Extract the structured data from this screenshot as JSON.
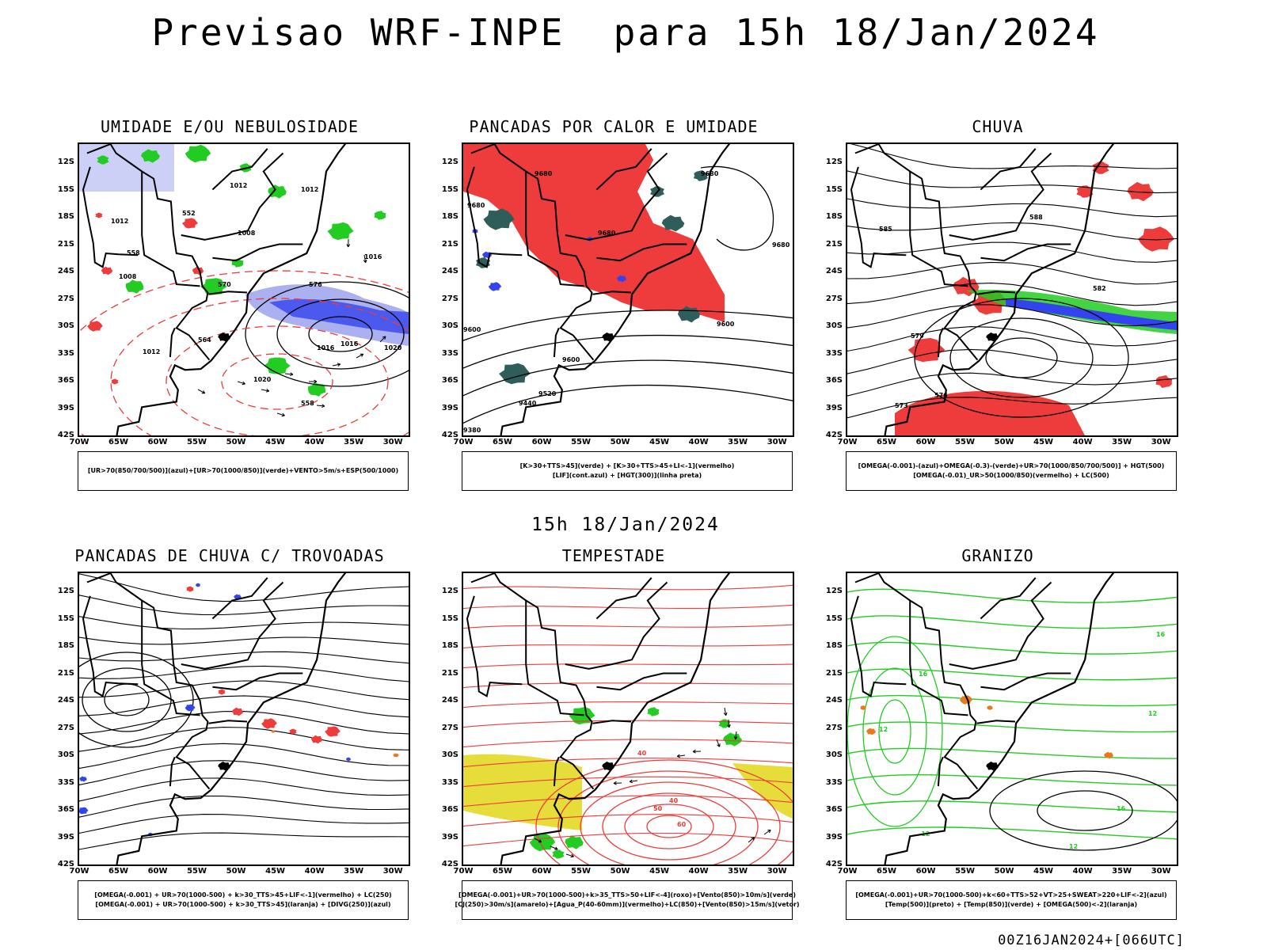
{
  "header": {
    "title": "Previsao WRF-INPE  para 15h 18/Jan/2024",
    "subtitle": "15h 18/Jan/2024",
    "footer": "00Z16JAN2024+[066UTC]"
  },
  "axes": {
    "lat_labels": [
      "12S",
      "15S",
      "18S",
      "21S",
      "24S",
      "27S",
      "30S",
      "33S",
      "36S",
      "39S",
      "42S"
    ],
    "lon_labels": [
      "70W",
      "65W",
      "60W",
      "55W",
      "50W",
      "45W",
      "40W",
      "35W",
      "30W"
    ]
  },
  "colors": {
    "green": "#22cc22",
    "blue": "#3344ee",
    "lightblue": "#aab0f0",
    "red": "#ee3b3b",
    "darkteal": "#2f5d5a",
    "yellow": "#e6dd3a",
    "orange": "#e87a1e",
    "black": "#000000"
  },
  "panels": [
    {
      "id": "umidade",
      "title": "UMIDADE E/OU NEBULOSIDADE",
      "legend": [
        "[UR>70(850/700/500)](azul)+[UR>70(1000/850)](verde)+VENTO>5m/s+ESP(500/1000)"
      ],
      "contour_labels": [
        "1012",
        "1012",
        "1012",
        "1008",
        "1008",
        "1016",
        "1012",
        "1016",
        "1020",
        "1020",
        "1016",
        "552",
        "558",
        "564",
        "570",
        "576",
        "558"
      ]
    },
    {
      "id": "pancadas-calor",
      "title": "PANCADAS POR CALOR E UMIDADE",
      "legend": [
        "[K>30+TTS>45](verde) + [K>30+TTS>45+LI<-1](vermelho)",
        "[LIF](cont.azul) + [HGT(300)](linha preta)"
      ],
      "contour_labels": [
        "9680",
        "9680",
        "9680",
        "9680",
        "9680",
        "9600",
        "9600",
        "9600",
        "9520",
        "9440",
        "9380"
      ]
    },
    {
      "id": "chuva",
      "title": "CHUVA",
      "legend": [
        "[OMEGA(-0.001)-(azul)+OMEGA(-0.3)-(verde)+UR>70(1000/850/700/500)] + HGT(500)",
        "[OMEGA(-0.01)_UR>50(1000/850)(vermelho) + LC(500)"
      ],
      "contour_labels": [
        "588",
        "585",
        "582",
        "579",
        "576",
        "573"
      ]
    },
    {
      "id": "pancadas-trovoadas",
      "title": "PANCADAS DE CHUVA C/ TROVOADAS",
      "legend": [
        "[OMEGA(-0.001) + UR>70(1000-500) + k>30_TTS>45+LIF<-1](vermelho) + LC(250)",
        "[OMEGA(-0.001) + UR>70(1000-500) + k>30_TTS>45](laranja) + [DIVG(250)](azul)"
      ],
      "contour_labels": []
    },
    {
      "id": "tempestade",
      "title": "TEMPESTADE",
      "legend": [
        "[OMEGA(-0.001)+UR>70(1000-500)+k>35_TTS>50+LIF<-4](roxo)+[Vento(850)>10m/s](verde)",
        "[CJ(250)>30m/s](amarelo)+[Agua_P(40-60mm)](vermelho)+LC(850)+[Vento(850)>15m/s](vetor)"
      ],
      "contour_labels": [
        "40",
        "40",
        "50",
        "60"
      ]
    },
    {
      "id": "granizo",
      "title": "GRANIZO",
      "legend": [
        "[OMEGA(-0.001)+UR>70(1000-500)+k<60+TTS>52+VT>25+SWEAT>220+LIF<-2](azul)",
        "[Temp(500)](preto) + [Temp(850)](verde) + [OMEGA(500)<-2](laranja)"
      ],
      "contour_labels": [
        "12",
        "12",
        "16",
        "16",
        "-12",
        "12",
        "16"
      ]
    }
  ]
}
